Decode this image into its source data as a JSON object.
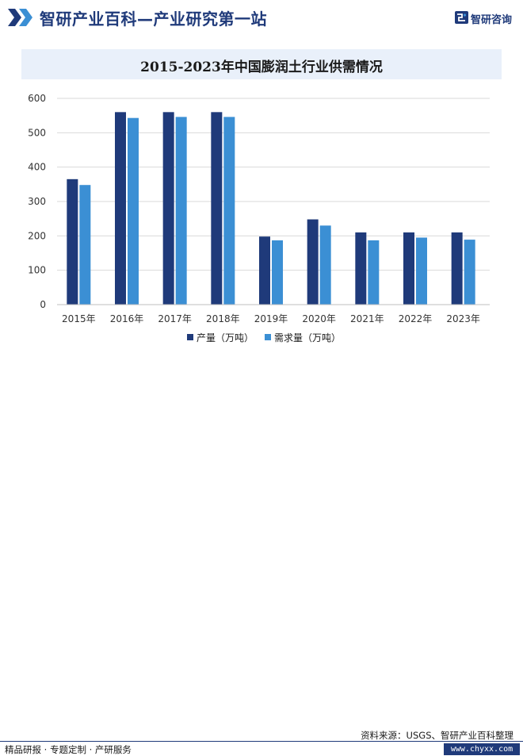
{
  "header": {
    "title": "智研产业百科—产业研究第一站",
    "brand": "智研咨询"
  },
  "chart_data": {
    "type": "bar",
    "title": "2015-2023年中国膨润土行业供需情况",
    "categories": [
      "2015年",
      "2016年",
      "2017年",
      "2018年",
      "2019年",
      "2020年",
      "2021年",
      "2022年",
      "2023年"
    ],
    "series": [
      {
        "name": "产量（万吨）",
        "color": "#1f3a7a",
        "values": [
          365,
          560,
          560,
          560,
          198,
          248,
          210,
          210,
          210
        ]
      },
      {
        "name": "需求量（万吨）",
        "color": "#3b8fd4",
        "values": [
          348,
          543,
          546,
          546,
          187,
          230,
          187,
          195,
          189
        ]
      }
    ],
    "ylim": [
      0,
      600
    ],
    "yticks": [
      0,
      100,
      200,
      300,
      400,
      500,
      600
    ],
    "grid": true,
    "legend_position": "bottom-center",
    "xlabel": "",
    "ylabel": ""
  },
  "footer": {
    "left": "精品研报 · 专题定制 · 产研服务",
    "source": "资料来源：USGS、智研产业百科整理",
    "url": "www.chyxx.com"
  }
}
